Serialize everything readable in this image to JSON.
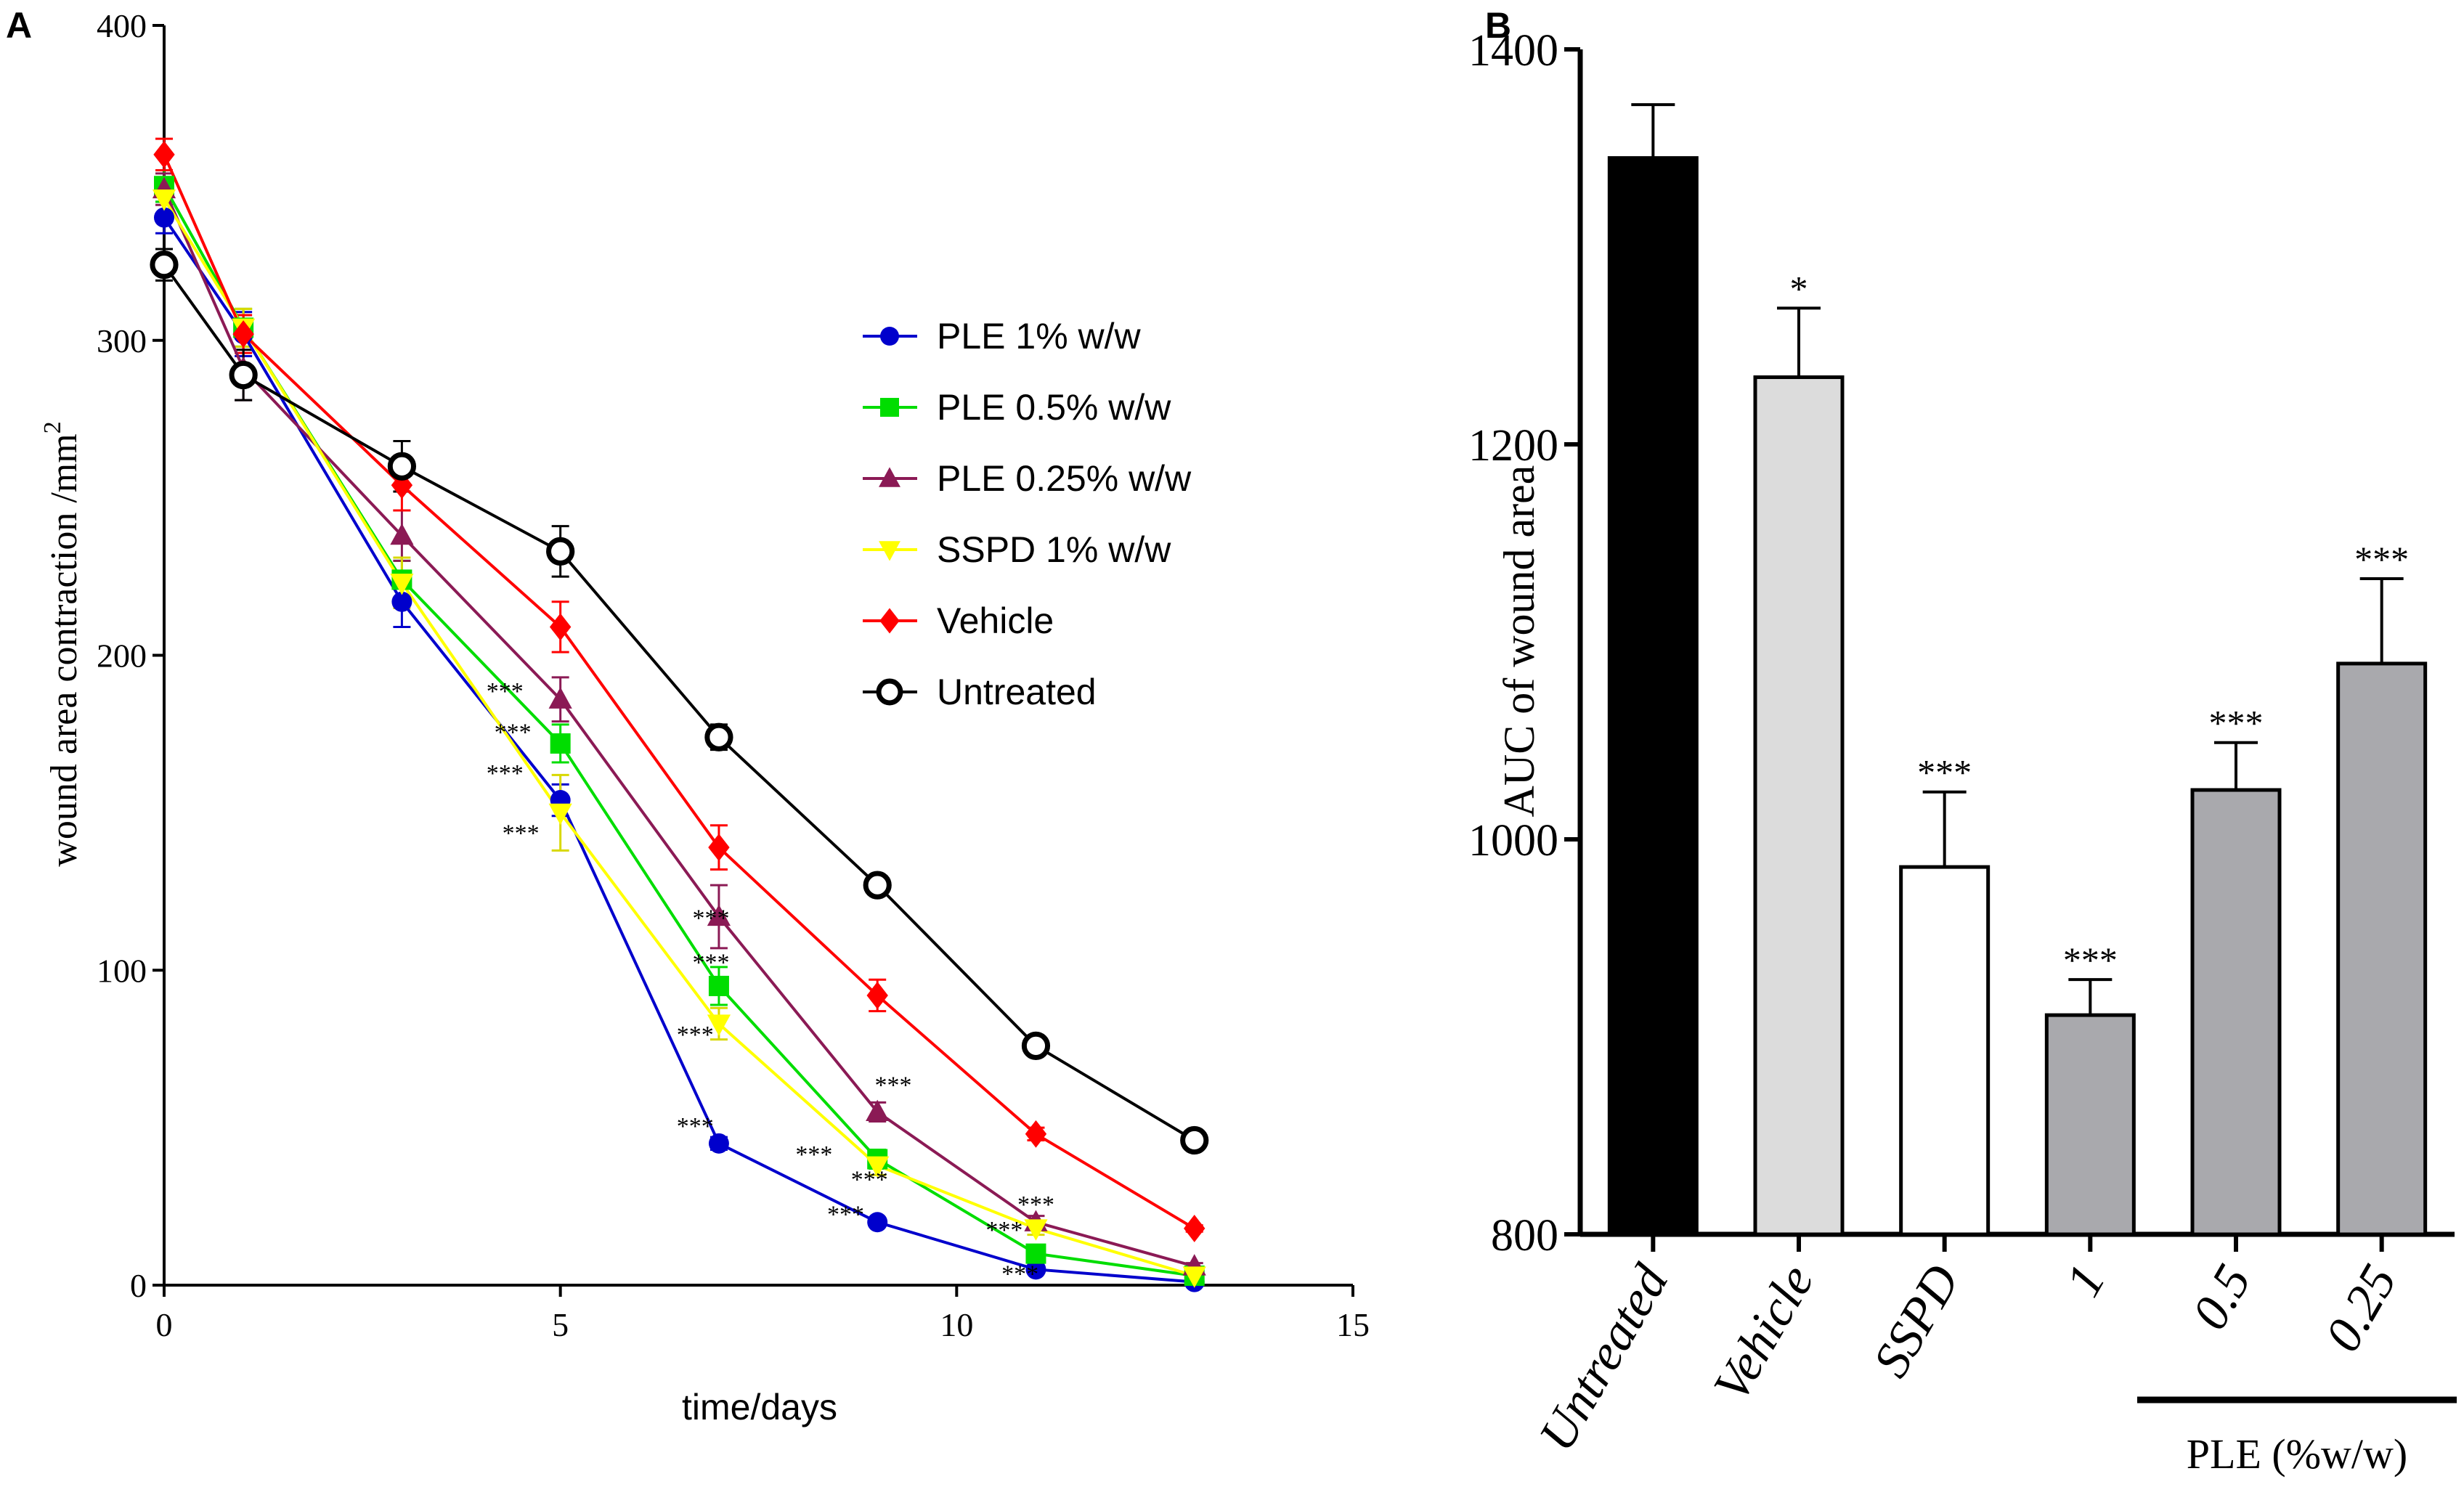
{
  "chart_data": [
    {
      "panel_label": "A",
      "type": "line",
      "title": "",
      "xlabel": "time/days",
      "ylabel": "wound area contraction /mm",
      "ylabel_superscript": "2",
      "xlim": [
        0,
        15
      ],
      "ylim": [
        0,
        400
      ],
      "xticks": [
        "0",
        "5",
        "10",
        "15"
      ],
      "yticks": [
        "0",
        "100",
        "200",
        "300",
        "400"
      ],
      "x": [
        0,
        1,
        3,
        5,
        7,
        9,
        11,
        13
      ],
      "legend_position": "right-middle",
      "series": [
        {
          "name": "PLE 1% w/w",
          "color": "#0000cc",
          "marker": "circle",
          "values": [
            339,
            302,
            217,
            154,
            45,
            20,
            5,
            1
          ],
          "errors": [
            5,
            7,
            8,
            5,
            2,
            1,
            1,
            0.5
          ]
        },
        {
          "name": "PLE 0.5% w/w",
          "color": "#00dd00",
          "marker": "square",
          "values": [
            349,
            304,
            224,
            172,
            95,
            40,
            10,
            3
          ],
          "errors": [
            5,
            6,
            6,
            6,
            6,
            3,
            2,
            1
          ]
        },
        {
          "name": "PLE 0.25% w/w",
          "color": "#8b1a55",
          "marker": "triangle-up",
          "values": [
            348,
            291,
            238,
            186,
            117,
            55,
            20,
            6
          ],
          "errors": [
            5,
            10,
            8,
            7,
            10,
            3,
            2,
            1
          ]
        },
        {
          "name": "SSPD 1% w/w",
          "color": "#ffff00",
          "marker": "triangle-down",
          "values": [
            345,
            304,
            223,
            150,
            83,
            38,
            18,
            3
          ],
          "errors": [
            5,
            6,
            8,
            12,
            5,
            3,
            2,
            1
          ]
        },
        {
          "name": "Vehicle",
          "color": "#ff0000",
          "marker": "diamond",
          "values": [
            359,
            302,
            254,
            209,
            139,
            92,
            48,
            18
          ],
          "errors": [
            5,
            6,
            8,
            8,
            7,
            5,
            2,
            1
          ]
        },
        {
          "name": "Untreated",
          "color": "#000000",
          "marker": "open-circle",
          "values": [
            324,
            289,
            260,
            233,
            174,
            127,
            76,
            46
          ],
          "errors": [
            5,
            8,
            8,
            8,
            4,
            2,
            2,
            1
          ]
        }
      ],
      "annotations": [
        {
          "text": "***",
          "x": 4.3,
          "y": 186
        },
        {
          "text": "***",
          "x": 4.4,
          "y": 173
        },
        {
          "text": "***",
          "x": 4.3,
          "y": 160
        },
        {
          "text": "***",
          "x": 4.5,
          "y": 141
        },
        {
          "text": "***",
          "x": 6.9,
          "y": 114
        },
        {
          "text": "***",
          "x": 6.9,
          "y": 100
        },
        {
          "text": "***",
          "x": 6.7,
          "y": 77
        },
        {
          "text": "***",
          "x": 6.7,
          "y": 48
        },
        {
          "text": "***",
          "x": 8.2,
          "y": 39
        },
        {
          "text": "***",
          "x": 8.9,
          "y": 31
        },
        {
          "text": "***",
          "x": 9.2,
          "y": 61
        },
        {
          "text": "***",
          "x": 8.6,
          "y": 20
        },
        {
          "text": "***",
          "x": 11.0,
          "y": 23
        },
        {
          "text": "***",
          "x": 10.6,
          "y": 15
        },
        {
          "text": "***",
          "x": 10.8,
          "y": 1
        }
      ]
    },
    {
      "panel_label": "B",
      "type": "bar",
      "title": "",
      "xlabel": "",
      "ylabel": "AUC of wound area",
      "ylim": [
        800,
        1400
      ],
      "yticks": [
        "800",
        "1000",
        "1200",
        "1400"
      ],
      "categories": [
        "Untreated",
        "Vehicle",
        "SSPD",
        "1",
        "0.5",
        "0.25"
      ],
      "values": [
        1345,
        1234,
        986,
        911,
        1025,
        1089
      ],
      "errors": [
        27,
        35,
        38,
        18,
        24,
        43
      ],
      "significance": [
        "",
        "*",
        "***",
        "***",
        "***",
        "***"
      ],
      "bar_colors": [
        "#000000",
        "#dcdcdc",
        "#ffffff",
        "#a9a9ad",
        "#a9a9ad",
        "#a9a9ad"
      ],
      "group_label": "PLE (%w/w)"
    }
  ]
}
